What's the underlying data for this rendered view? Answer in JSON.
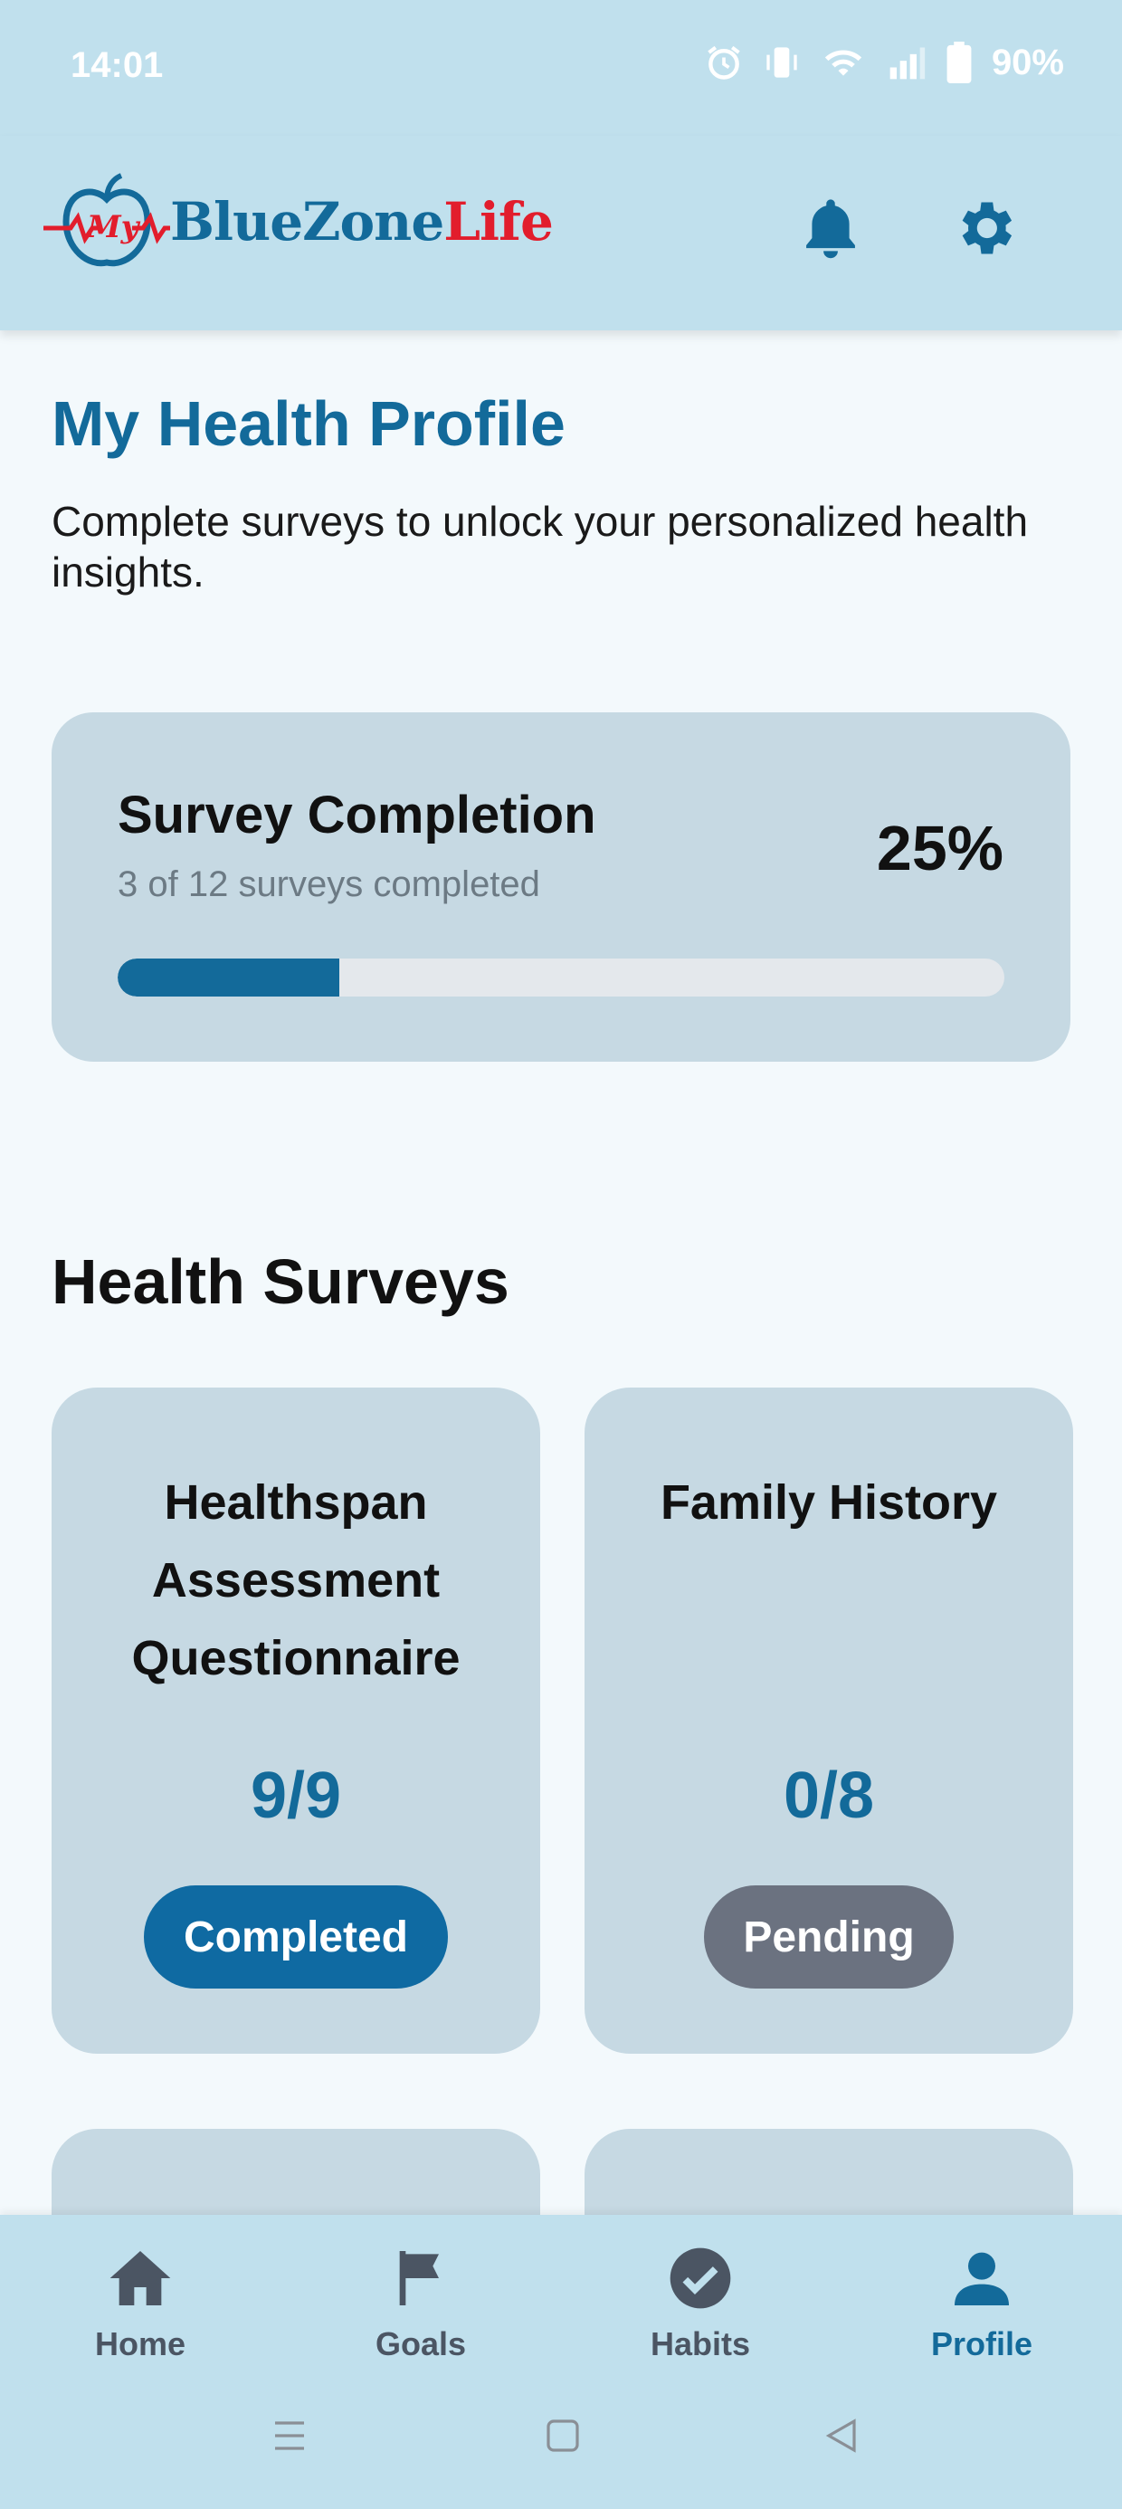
{
  "status_bar": {
    "time": "14:01",
    "battery": "90%",
    "icons": [
      "alarm-icon",
      "vibrate-icon",
      "wifi-icon",
      "signal-icon",
      "battery-icon"
    ]
  },
  "header": {
    "logo": {
      "my": "My",
      "blue": "BlueZone",
      "red": "Life"
    },
    "icons": [
      "bell-icon",
      "gear-icon"
    ],
    "colors": {
      "brand_blue": "#136a9a",
      "brand_red": "#e21d2c"
    }
  },
  "page": {
    "title": "My Health Profile",
    "subtitle": "Complete surveys to unlock your personalized health insights."
  },
  "completion": {
    "title": "Survey Completion",
    "subtitle": "3 of 12 surveys completed",
    "percent_label": "25%",
    "progress_fraction": 0.25
  },
  "surveys": {
    "section_title": "Health Surveys",
    "items": [
      {
        "name": "Healthspan Assessment Questionnaire",
        "count": "9/9",
        "status": "Completed"
      },
      {
        "name": "Family History",
        "count": "0/8",
        "status": "Pending"
      }
    ]
  },
  "bottom_nav": {
    "items": [
      {
        "label": "Home",
        "icon": "home-icon"
      },
      {
        "label": "Goals",
        "icon": "flag-icon"
      },
      {
        "label": "Habits",
        "icon": "check-circle-icon"
      },
      {
        "label": "Profile",
        "icon": "person-icon",
        "active": true
      }
    ]
  },
  "system_nav": [
    "menu-icon",
    "home-square-icon",
    "back-triangle-icon"
  ]
}
